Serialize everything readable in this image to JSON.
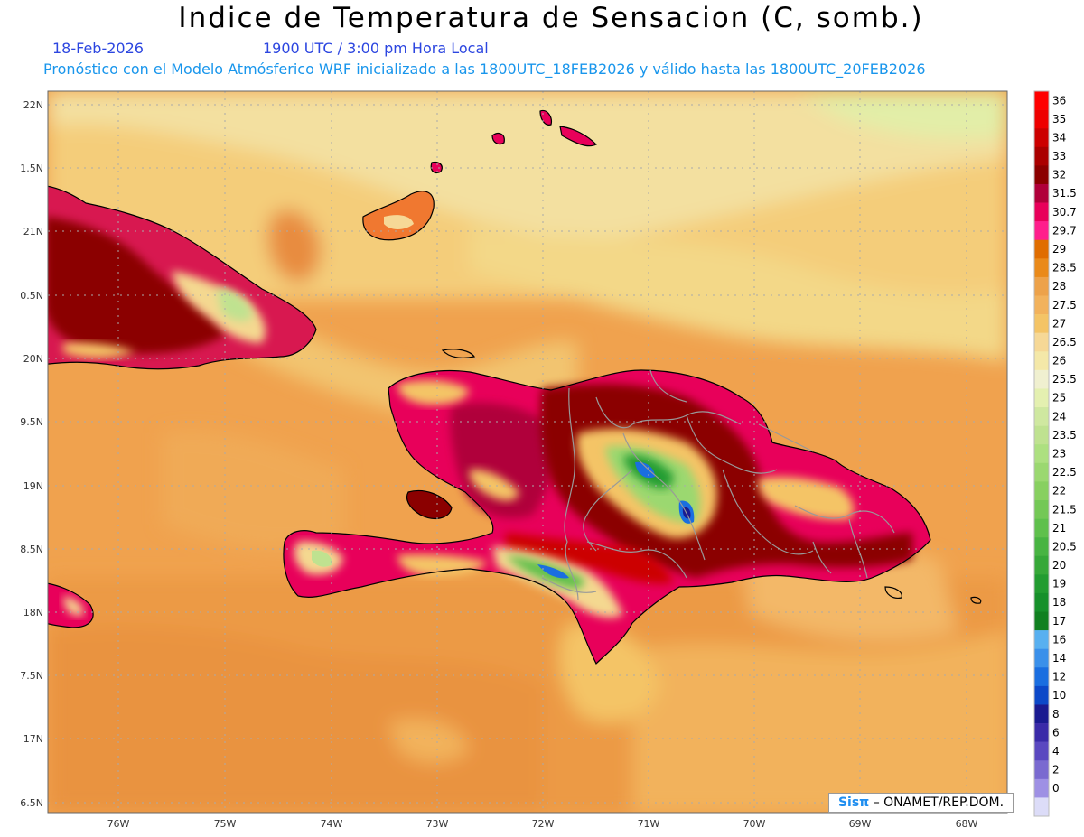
{
  "title": "Indice de Temperatura de Sensacion (C, somb.)",
  "subtitle_date": "18-Feb-2026",
  "subtitle_time": "1900 UTC / 3:00 pm Hora Local",
  "subtitle_model": "Pronóstico con el Modelo Atmósferico WRF inicializado a las 1800UTC_18FEB2026 y válido hasta las  1800UTC_20FEB2026",
  "credit": {
    "logo": "Sisπ",
    "text": "– ONAMET/REP.DOM."
  },
  "axes": {
    "lat_labels": [
      "22N",
      "1.5N",
      "21N",
      "0.5N",
      "20N",
      "9.5N",
      "19N",
      "8.5N",
      "18N",
      "7.5N",
      "17N",
      "6.5N"
    ],
    "lon_labels": [
      "76W",
      "75W",
      "74W",
      "73W",
      "72W",
      "71W",
      "70W",
      "69W",
      "68W"
    ]
  },
  "colorbar": {
    "labels": [
      "36",
      "35",
      "34",
      "33",
      "32",
      "31.5",
      "30.7",
      "29.7",
      "29",
      "28.5",
      "28",
      "27.5",
      "27",
      "26.5",
      "26",
      "25.5",
      "25",
      "24",
      "23.5",
      "23",
      "22.5",
      "22",
      "21.5",
      "21",
      "20.5",
      "20",
      "19",
      "18",
      "17",
      "16",
      "14",
      "12",
      "10",
      "8",
      "6",
      "4",
      "2",
      "0"
    ],
    "colors": [
      "#ff0000",
      "#ee0000",
      "#cc0000",
      "#aa0000",
      "#8b0000",
      "#b0003a",
      "#e8005a",
      "#ff1e8c",
      "#e06d00",
      "#ea8a1a",
      "#eda24a",
      "#f2b25c",
      "#f4c466",
      "#f6d896",
      "#f4e8a8",
      "#f0f0d0",
      "#e4f0b0",
      "#cfe8a0",
      "#bfe290",
      "#ade080",
      "#9bd870",
      "#88d060",
      "#74c856",
      "#5fc04c",
      "#48b442",
      "#36a838",
      "#229c30",
      "#16902a",
      "#108020",
      "#58b0f0",
      "#3a90ea",
      "#1a6ee0",
      "#0c48c8",
      "#1a1a90",
      "#3a2aa8",
      "#5a48c0",
      "#7a6ad0",
      "#9e90e4",
      "#dcdcf8"
    ]
  }
}
